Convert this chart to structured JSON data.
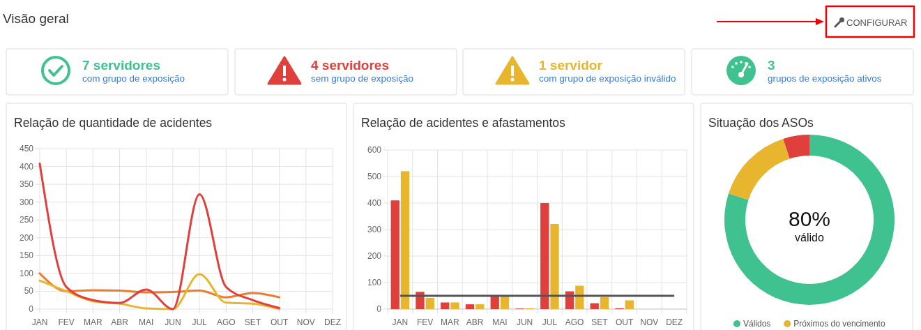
{
  "chart_data": [
    {
      "type": "other",
      "title": "Visão geral",
      "annotations": [
        "CONFIGURAR",
        "7 servidores",
        "com grupo de exposição",
        "4 servidores",
        "sem grupo de exposição",
        "1 servidor",
        "com grupo de exposição inválido",
        "3",
        "grupos de exposição ativos"
      ],
      "colors": [
        "#40c290",
        "#e0403c",
        "#e8b52f",
        "#40c290"
      ]
    },
    {
      "type": "line",
      "title": "Relação de quantidade de acidentes",
      "categories": [
        "JAN",
        "FEV",
        "MAR",
        "ABR",
        "MAI",
        "JUN",
        "JUL",
        "AGO",
        "SET",
        "OUT",
        "NOV",
        "DEZ"
      ],
      "series": [
        {
          "color": "#ec7c30",
          "values": [
            100,
            50,
            53,
            52,
            47,
            48,
            52,
            33,
            45,
            33,
            null,
            null
          ]
        },
        {
          "color": "#e8b52f",
          "values": [
            80,
            50,
            22,
            15,
            2,
            0,
            98,
            18,
            15,
            0,
            null,
            null
          ]
        },
        {
          "color": "#e0403c",
          "values": [
            408,
            62,
            25,
            17,
            55,
            0,
            322,
            62,
            25,
            3,
            null,
            null
          ]
        }
      ],
      "ylim": [
        0,
        450
      ],
      "yticks": [
        0,
        50,
        100,
        150,
        200,
        250,
        300,
        350,
        400,
        450
      ],
      "grid": true,
      "marker": "none"
    },
    {
      "type": "bar",
      "title": "Relação de acidentes e afastamentos",
      "categories": [
        "JAN",
        "FEV",
        "MAR",
        "ABR",
        "MAI",
        "JUN",
        "JUL",
        "AGO",
        "SET",
        "OUT",
        "NOV",
        "DEZ"
      ],
      "series": [
        {
          "color": "#e0403c",
          "values": [
            410,
            65,
            25,
            18,
            50,
            2,
            400,
            67,
            22,
            3,
            null,
            null
          ]
        },
        {
          "color": "#e8b52f",
          "values": [
            520,
            42,
            25,
            18,
            50,
            3,
            321,
            88,
            45,
            33,
            null,
            null
          ]
        }
      ],
      "ylim": [
        0,
        600
      ],
      "yticks": [
        0,
        100,
        200,
        300,
        400,
        500,
        600
      ],
      "grid": true,
      "ref_lines": [
        {
          "axis": "y",
          "value": 50,
          "color": "#555555"
        }
      ]
    },
    {
      "type": "donut",
      "title": "Situação dos ASOs",
      "categories": [
        "Válidos",
        "Próximos do vencimento",
        null
      ],
      "values": [
        80,
        15,
        5
      ],
      "colors": [
        "#40c290",
        "#e8b52f",
        "#e0403c"
      ],
      "annotations": [
        "80%",
        "válido"
      ],
      "legend": "bottom"
    }
  ]
}
